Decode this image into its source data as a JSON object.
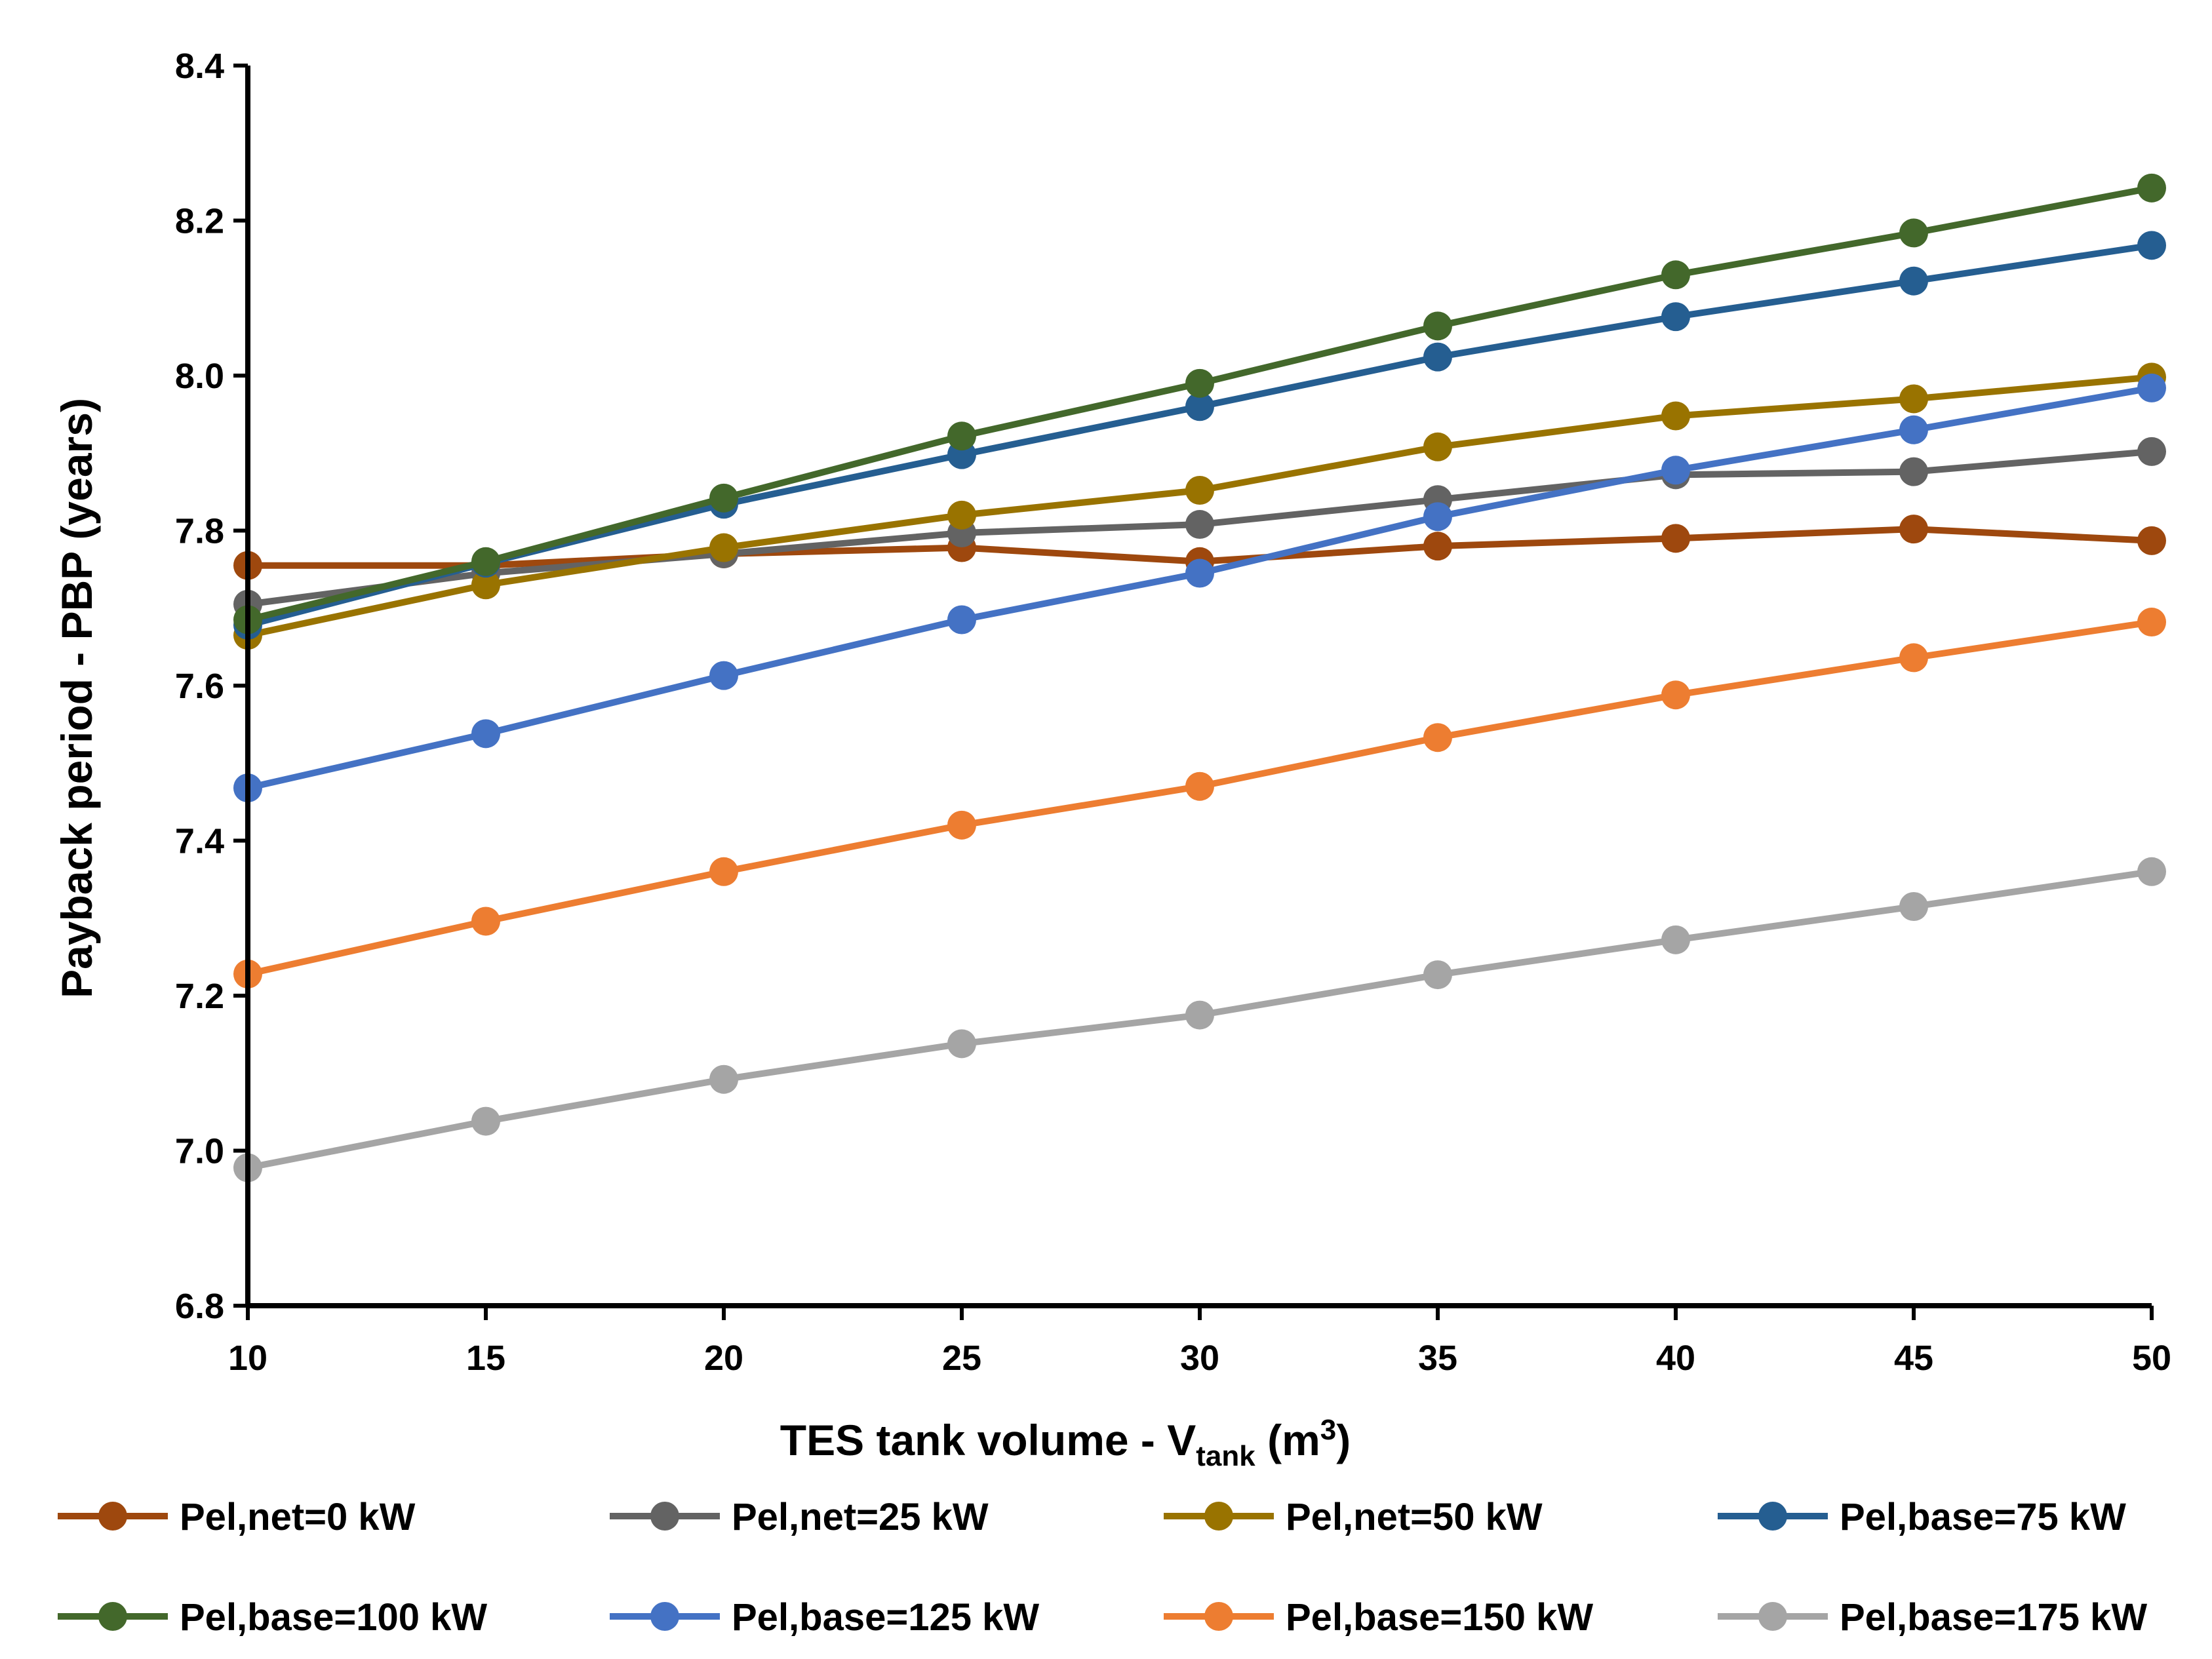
{
  "chart_data": {
    "type": "line",
    "title": "",
    "xlabel": {
      "main": "TES tank volume - V",
      "sub": "tank",
      "unit_pre": " (m",
      "sup": "3",
      "unit_post": ")"
    },
    "ylabel": "Payback period - PBP (years)",
    "xlim": [
      10,
      50
    ],
    "ylim": [
      6.8,
      8.4
    ],
    "x": [
      10,
      15,
      20,
      25,
      30,
      35,
      40,
      45,
      50
    ],
    "x_tick_labels": [
      "10",
      "15",
      "20",
      "25",
      "30",
      "35",
      "40",
      "45",
      "50"
    ],
    "y_ticks": [
      6.8,
      7.0,
      7.2,
      7.4,
      7.6,
      7.8,
      8.0,
      8.2,
      8.4
    ],
    "y_tick_labels": [
      "6.8",
      "7.0",
      "7.2",
      "7.4",
      "7.6",
      "7.8",
      "8.0",
      "8.2",
      "8.4"
    ],
    "grid": false,
    "legend_position": "bottom",
    "series": [
      {
        "name": "Pel,net=0 kW",
        "color": "#9E480E",
        "values": [
          7.755,
          7.755,
          7.77,
          7.778,
          7.76,
          7.78,
          7.79,
          7.802,
          7.787
        ]
      },
      {
        "name": "Pel,net=25 kW",
        "color": "#636363",
        "values": [
          7.705,
          7.745,
          7.77,
          7.797,
          7.808,
          7.84,
          7.872,
          7.876,
          7.902
        ]
      },
      {
        "name": "Pel,net=50 kW",
        "color": "#997300",
        "values": [
          7.665,
          7.73,
          7.778,
          7.82,
          7.852,
          7.908,
          7.948,
          7.97,
          7.998
        ]
      },
      {
        "name": "Pel,base=75 kW",
        "color": "#255E91",
        "values": [
          7.678,
          7.758,
          7.834,
          7.898,
          7.96,
          8.024,
          8.076,
          8.122,
          8.168
        ]
      },
      {
        "name": "Pel,base=100 kW",
        "color": "#43682B",
        "values": [
          7.685,
          7.76,
          7.842,
          7.922,
          7.99,
          8.064,
          8.13,
          8.184,
          8.242
        ]
      },
      {
        "name": "Pel,base=125 kW",
        "color": "#4472C4",
        "values": [
          7.468,
          7.538,
          7.613,
          7.685,
          7.745,
          7.818,
          7.878,
          7.93,
          7.984
        ]
      },
      {
        "name": "Pel,base=150 kW",
        "color": "#ED7D31",
        "values": [
          7.228,
          7.296,
          7.36,
          7.42,
          7.47,
          7.533,
          7.588,
          7.636,
          7.682
        ]
      },
      {
        "name": "Pel,base=175 kW",
        "color": "#A5A5A5",
        "values": [
          6.978,
          7.038,
          7.092,
          7.138,
          7.175,
          7.227,
          7.272,
          7.315,
          7.36
        ]
      }
    ]
  }
}
